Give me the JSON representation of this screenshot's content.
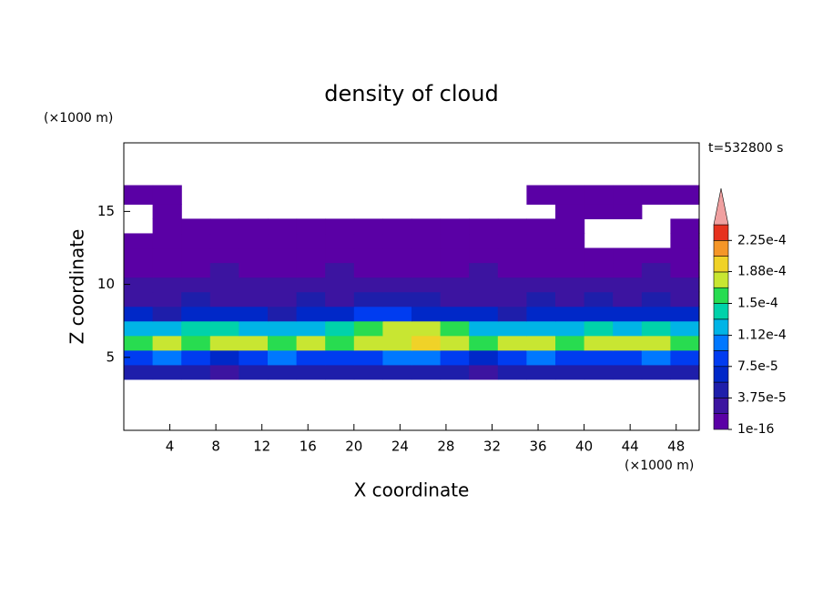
{
  "chart_data": {
    "type": "contour",
    "title": "density of cloud",
    "time_label": "t=532800 s",
    "xlabel": "X coordinate",
    "ylabel": "Z coordinate",
    "x_unit": "(×1000 m)",
    "y_unit": "(×1000 m)",
    "xlim": [
      0,
      50
    ],
    "ylim": [
      0,
      19.7
    ],
    "xticks": [
      4,
      8,
      12,
      16,
      20,
      24,
      28,
      32,
      36,
      40,
      44,
      48
    ],
    "yticks": [
      5,
      10,
      15
    ],
    "x_edges": [
      0,
      2.5,
      5,
      7.5,
      10,
      12.5,
      15,
      17.5,
      20,
      22.5,
      25,
      27.5,
      30,
      32.5,
      35,
      37.5,
      40,
      42.5,
      45,
      47.5,
      50
    ],
    "z_edges": [
      3.5,
      4.5,
      5.5,
      6.5,
      7.5,
      8.5,
      9.5,
      10.5,
      11.5,
      12.5,
      13.5,
      14.5,
      15.5,
      16.8
    ],
    "values": [
      [
        4e-05,
        4e-05,
        5e-05,
        3e-05,
        4e-05,
        5e-05,
        4e-05,
        4e-05,
        4e-05,
        4e-05,
        5e-05,
        4e-05,
        3e-05,
        4e-05,
        4e-05,
        4e-05,
        5e-05,
        4e-05,
        4e-05,
        4e-05
      ],
      [
        9e-05,
        0.0001,
        8e-05,
        7e-05,
        9e-05,
        0.0001,
        9e-05,
        8e-05,
        9e-05,
        0.0001,
        0.0001,
        9e-05,
        7e-05,
        9e-05,
        0.0001,
        9e-05,
        8e-05,
        9e-05,
        0.0001,
        9e-05
      ],
      [
        0.00016,
        0.00017,
        0.00015,
        0.00018,
        0.00017,
        0.00016,
        0.00017,
        0.00016,
        0.00017,
        0.00018,
        0.00019,
        0.00018,
        0.00015,
        0.00017,
        0.00018,
        0.00016,
        0.00017,
        0.00018,
        0.00017,
        0.00016
      ],
      [
        0.00012,
        0.00013,
        0.00014,
        0.00014,
        0.00013,
        0.00012,
        0.00013,
        0.00014,
        0.00016,
        0.00017,
        0.00018,
        0.00015,
        0.00013,
        0.00012,
        0.00013,
        0.00012,
        0.00014,
        0.00013,
        0.00014,
        0.00013
      ],
      [
        6e-05,
        5e-05,
        7e-05,
        6e-05,
        6e-05,
        5e-05,
        6e-05,
        7e-05,
        8e-05,
        8e-05,
        7e-05,
        6e-05,
        6e-05,
        5e-05,
        6e-05,
        6e-05,
        7e-05,
        6e-05,
        7e-05,
        6e-05
      ],
      [
        3e-05,
        3e-05,
        4e-05,
        3e-05,
        3e-05,
        3e-05,
        4e-05,
        3e-05,
        4e-05,
        4e-05,
        4e-05,
        3e-05,
        3e-05,
        3e-05,
        4e-05,
        3e-05,
        4e-05,
        3e-05,
        4e-05,
        3e-05
      ],
      [
        2e-05,
        2e-05,
        3e-05,
        2e-05,
        2e-05,
        3e-05,
        2e-05,
        2e-05,
        2e-05,
        3e-05,
        2e-05,
        2e-05,
        2e-05,
        2e-05,
        3e-05,
        2e-05,
        2e-05,
        3e-05,
        2e-05,
        2e-05
      ],
      [
        1.5e-05,
        1.5e-05,
        1.5e-05,
        2e-05,
        1.5e-05,
        1.5e-05,
        1.5e-05,
        2e-05,
        1.5e-05,
        1.5e-05,
        1.5e-05,
        1.5e-05,
        2e-05,
        1.5e-05,
        1.5e-05,
        1.5e-05,
        1.5e-05,
        1.5e-05,
        2e-05,
        1.5e-05
      ],
      [
        1e-05,
        1e-05,
        1e-05,
        1e-05,
        1e-05,
        1e-05,
        1e-05,
        1e-05,
        1e-05,
        1e-05,
        1e-05,
        1e-05,
        1e-05,
        1e-05,
        1e-05,
        1e-05,
        1e-05,
        1e-05,
        1e-05,
        1e-05
      ],
      [
        8e-06,
        8e-06,
        8e-06,
        8e-06,
        8e-06,
        8e-06,
        8e-06,
        8e-06,
        8e-06,
        8e-06,
        8e-06,
        8e-06,
        8e-06,
        8e-06,
        8e-06,
        8e-06,
        null,
        null,
        null,
        8e-06
      ],
      [
        null,
        5e-06,
        5e-06,
        5e-06,
        5e-06,
        5e-06,
        5e-06,
        5e-06,
        5e-06,
        5e-06,
        5e-06,
        5e-06,
        5e-06,
        5e-06,
        5e-06,
        5e-06,
        null,
        null,
        null,
        5e-06
      ],
      [
        null,
        5e-06,
        null,
        null,
        null,
        null,
        null,
        null,
        null,
        null,
        null,
        null,
        null,
        null,
        null,
        5e-06,
        5e-06,
        5e-06,
        null,
        null
      ],
      [
        4e-06,
        4e-06,
        null,
        null,
        null,
        null,
        null,
        null,
        null,
        null,
        null,
        null,
        null,
        null,
        4e-06,
        4e-06,
        4e-06,
        4e-06,
        4e-06,
        4e-06
      ]
    ],
    "levels": [
      1e-16,
      1.875e-05,
      3.75e-05,
      5.625e-05,
      7.5e-05,
      9.375e-05,
      0.0001125,
      0.00013125,
      0.00015,
      0.00016875,
      0.0001875,
      0.00020625,
      0.000225
    ],
    "colors": [
      "#5a00a5",
      "#3c14a0",
      "#1e1eaa",
      "#0028c8",
      "#003cf0",
      "#0078ff",
      "#00b4e6",
      "#00d2aa",
      "#28dc50",
      "#c8e632",
      "#f0d228",
      "#f59628",
      "#e6321e",
      "#f0a0a0"
    ],
    "clim": [
      1e-16,
      0.00024375
    ],
    "colorbar_ticks": [
      {
        "value": 1e-16,
        "label": "1e-16"
      },
      {
        "value": 3.75e-05,
        "label": "3.75e-5"
      },
      {
        "value": 7.5e-05,
        "label": "7.5e-5"
      },
      {
        "value": 0.000112,
        "label": "1.12e-4"
      },
      {
        "value": 0.00015,
        "label": "1.5e-4"
      },
      {
        "value": 0.000188,
        "label": "1.88e-4"
      },
      {
        "value": 0.000225,
        "label": "2.25e-4"
      }
    ]
  }
}
